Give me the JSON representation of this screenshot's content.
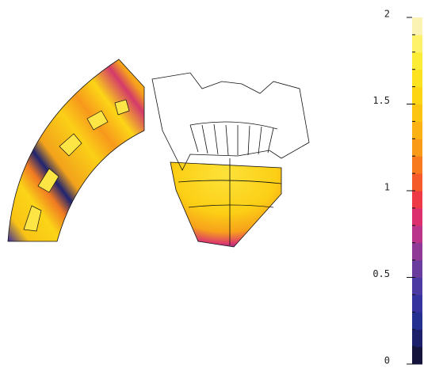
{
  "colorbar": {
    "range": [
      0,
      2
    ],
    "ticks": [
      0,
      0.5,
      1,
      1.5,
      2
    ],
    "colors": [
      "#14143c",
      "#1c1f6a",
      "#23308f",
      "#35339e",
      "#4b3aa2",
      "#6a3c9e",
      "#8e3a96",
      "#b9348a",
      "#dc2f6e",
      "#ee3a46",
      "#f45a2a",
      "#f77a1e",
      "#f99a18",
      "#fbb214",
      "#fcc512",
      "#fdd513",
      "#fde220",
      "#fdec36",
      "#fdf26a",
      "#fbf3b4"
    ]
  }
}
